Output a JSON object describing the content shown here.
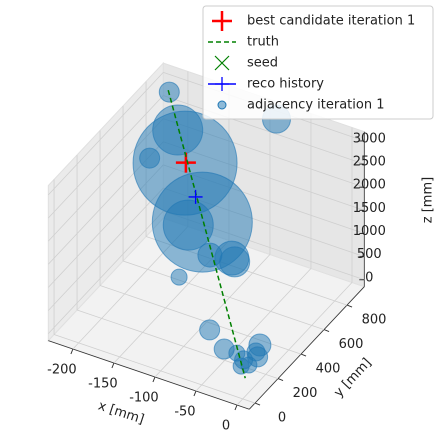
{
  "chart_data": {
    "type": "scatter3d",
    "xlabel": "x [mm]",
    "ylabel": "y [mm]",
    "zlabel": "z [mm]",
    "xlim": [
      -230,
      15
    ],
    "ylim": [
      -50,
      950
    ],
    "zlim": [
      -150,
      3200
    ],
    "xticks": [
      -200,
      -150,
      -100,
      -50,
      0
    ],
    "yticks": [
      0,
      200,
      400,
      600,
      800
    ],
    "zticks": [
      0,
      500,
      1000,
      1500,
      2000,
      2500,
      3000
    ],
    "grid": true,
    "legend": "upper right",
    "series": [
      {
        "name": "best candidate iteration 1",
        "color": "#ff0000",
        "marker": "plus",
        "x": [
          -167
        ],
        "y": [
          697
        ],
        "z": [
          2100
        ]
      },
      {
        "name": "truth",
        "color": "#008000",
        "marker": "dashed-line",
        "x": [
          -217,
          -11
        ],
        "y": [
          900,
          100
        ],
        "z": [
          2826,
          -33
        ]
      },
      {
        "name": "seed",
        "color": "#008000",
        "marker": "x",
        "x": [],
        "y": [],
        "z": []
      },
      {
        "name": "reco history",
        "color": "#0000ff",
        "marker": "plus-line",
        "x": [
          -142
        ],
        "y": [
          603
        ],
        "z": [
          1759
        ]
      },
      {
        "name": "adjacency iteration 1",
        "color": "#1f77b4",
        "marker": "circle",
        "x": [
          -215,
          -190,
          -213,
          -168,
          -124,
          -140,
          -74,
          -69,
          -102,
          -131,
          -85,
          -73,
          -48,
          -6,
          -8,
          -31,
          -20,
          -4,
          -21,
          -12
        ],
        "y": [
          895,
          790,
          710,
          697,
          533,
          525,
          433,
          422,
          442,
          381,
          900,
          233,
          181,
          192,
          172,
          170,
          150,
          158,
          136,
          139
        ],
        "z": [
          2810,
          2420,
          1885,
          2083,
          1509,
          1368,
          1299,
          1275,
          1170,
          681,
          3000,
          282,
          157,
          470,
          360,
          202,
          174,
          314,
          72,
          142
        ],
        "sizes": [
          400,
          2500,
          400,
          10816,
          10000,
          2500,
          1156,
          900,
          576,
          256,
          784,
          400,
          400,
          484,
          324,
          256,
          324,
          400,
          256,
          256
        ]
      }
    ]
  }
}
